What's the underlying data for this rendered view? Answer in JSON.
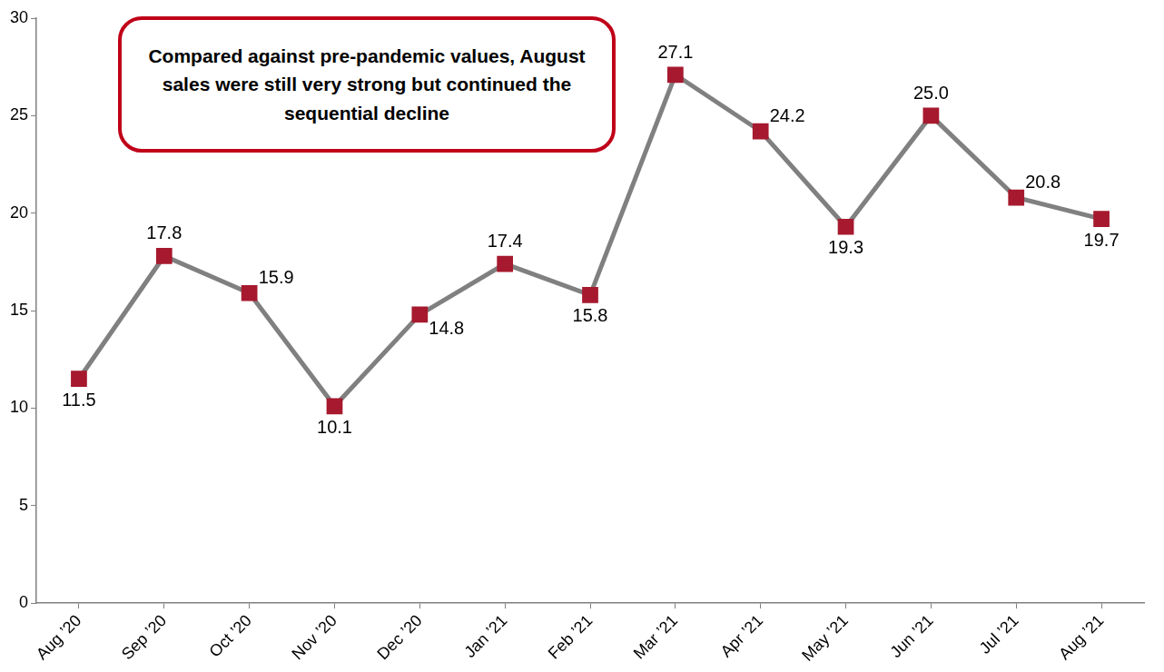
{
  "chart_data": {
    "type": "line",
    "annotation": "Compared against pre-pandemic values, August sales were still very strong but continued the sequential decline",
    "categories": [
      "Aug ’20",
      "Sep ’20",
      "Oct ’20",
      "Nov ’20",
      "Dec ’20",
      "Jan ’21",
      "Feb ’21",
      "Mar ’21",
      "Apr ’21",
      "May ’21",
      "Jun ’21",
      "Jul ’21",
      "Aug ’21"
    ],
    "values": [
      11.5,
      17.8,
      15.9,
      10.1,
      14.8,
      17.4,
      15.8,
      27.1,
      24.2,
      19.3,
      25.0,
      20.8,
      19.7
    ],
    "value_labels": [
      "11.5",
      "17.8",
      "15.9",
      "10.1",
      "14.8",
      "17.4",
      "15.8",
      "27.1",
      "24.2",
      "19.3",
      "25.0",
      "20.8",
      "19.7"
    ],
    "color": "#808080",
    "marker": "square",
    "line_style": "solid",
    "ylim": [
      0,
      30
    ],
    "yticks": [
      0,
      5,
      10,
      15,
      20,
      25,
      30
    ],
    "grid": false,
    "data_labels": true
  }
}
